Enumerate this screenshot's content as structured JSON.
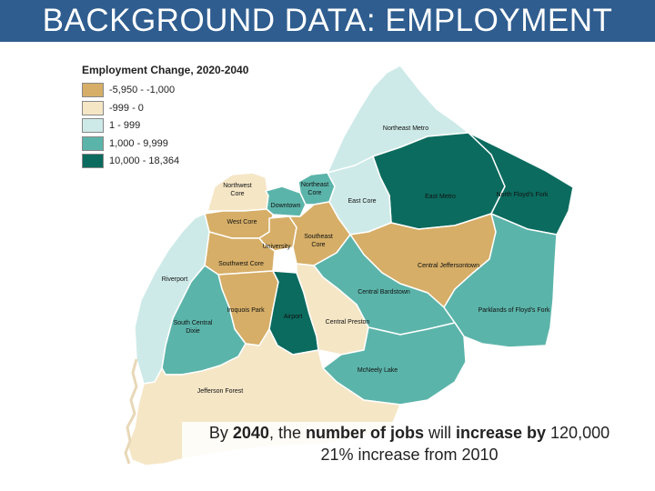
{
  "title": "BACKGROUND DATA: EMPLOYMENT",
  "legend": {
    "title": "Employment Change, 2020-2040",
    "items": [
      {
        "label": "-5,950 - -1,000",
        "color": "#d6ae67"
      },
      {
        "label": "-999 - 0",
        "color": "#f5e6c6"
      },
      {
        "label": "1 - 999",
        "color": "#cdeae8"
      },
      {
        "label": "1,000 - 9,999",
        "color": "#5bb4aa"
      },
      {
        "label": "10,000 - 18,364",
        "color": "#0b6b5e"
      }
    ]
  },
  "regions": [
    {
      "name": "Northeast Metro",
      "category": "1 - 999"
    },
    {
      "name": "East Metro",
      "category": "10,000 - 18,364"
    },
    {
      "name": "North Floyd's Fork",
      "category": "10,000 - 18,364"
    },
    {
      "name": "Northwest Core",
      "category": "-999 - 0"
    },
    {
      "name": "Northeast Core",
      "category": "1,000 - 9,999"
    },
    {
      "name": "Downtown",
      "category": "1,000 - 9,999"
    },
    {
      "name": "East Core",
      "category": "1 - 999"
    },
    {
      "name": "West Core",
      "category": "-5,950 - -1,000"
    },
    {
      "name": "Southeast Core",
      "category": "-5,950 - -1,000"
    },
    {
      "name": "University",
      "category": "-5,950 - -1,000"
    },
    {
      "name": "Southwest Core",
      "category": "-5,950 - -1,000"
    },
    {
      "name": "Riverport",
      "category": "1 - 999"
    },
    {
      "name": "Central Jeffersontown",
      "category": "-5,950 - -1,000"
    },
    {
      "name": "Central Bardstown",
      "category": "1,000 - 9,999"
    },
    {
      "name": "Parklands of Floyd's Fork",
      "category": "1,000 - 9,999"
    },
    {
      "name": "Iroquois Park",
      "category": "-5,950 - -1,000"
    },
    {
      "name": "Airport",
      "category": "10,000 - 18,364"
    },
    {
      "name": "Central Preston",
      "category": "-999 - 0"
    },
    {
      "name": "South Central Dixie",
      "category": "1,000 - 9,999"
    },
    {
      "name": "McNeely Lake",
      "category": "1,000 - 9,999"
    },
    {
      "name": "Jefferson Forest",
      "category": "-999 - 0"
    }
  ],
  "labels": {
    "northeast_metro": "Northeast Metro",
    "east_metro": "East Metro",
    "north_floyds_fork": "North Floyd's Fork",
    "northwest_core_1": "Northwest",
    "northwest_core_2": "Core",
    "northeast_core_1": "Northeast",
    "northeast_core_2": "Core",
    "downtown": "Downtown",
    "east_core": "East Core",
    "west_core": "West Core",
    "southeast_core_1": "Southeast",
    "southeast_core_2": "Core",
    "university": "University",
    "southwest_core": "Southwest Core",
    "riverport": "Riverport",
    "central_jeffersontown": "Central Jeffersontown",
    "central_bardstown": "Central Bardstown",
    "parklands": "Parklands of Floyd's Fork",
    "iroquois_park": "Iroquois Park",
    "airport": "Airport",
    "central_preston": "Central Preston",
    "south_central_dixie_1": "South Central",
    "south_central_dixie_2": "Dixie",
    "mcneely_lake": "McNeely Lake",
    "jefferson_forest": "Jefferson Forest"
  },
  "caption": {
    "line1_part1": "By ",
    "line1_year": "2040",
    "line1_part2": ", the ",
    "line1_bold1": "number of jobs",
    "line1_part3": " will ",
    "line1_bold2": "increase by",
    "line1_part4": " 120,000",
    "line2": "21% increase from 2010"
  }
}
